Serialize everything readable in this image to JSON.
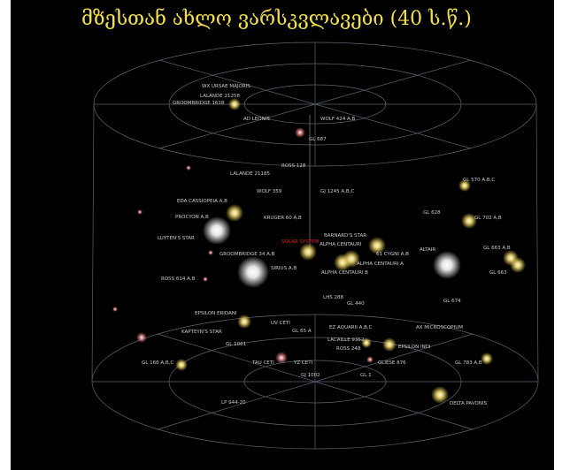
{
  "title": "მზესთან ახლო ვარსკვლავები (40 ს.წ.)",
  "labels": [
    "WX URSAE MAJORIS",
    "LALANDE 21258",
    "GROOMBRIDGE 1618",
    "AD LEONIS",
    "WOLF 424 A,B",
    "GL 687",
    "ROSS 128",
    "LALANDE 21185",
    "WOLF 359",
    "GJ 1245 A,B,C",
    "GL 570 A,B,C",
    "EDA CASSIOPEIA A,B",
    "KRUGER 60 A,B",
    "GL 628",
    "GL 702 A,B",
    "PROCYON A,B",
    "LUYTEN'S STAR",
    "SOLAR SYSTEM",
    "BARNARD'S STAR",
    "ALPHA CENTAURI",
    "GROOMBRIDGE 34 A,B",
    "61 CYGNI A,B",
    "ALTAIR",
    "GL 663 A,B",
    "SIRIUS A,B",
    "ALPHA CENTAURI A",
    "ALPHA CENTAURI B",
    "GL 663",
    "ROSS 614 A,B",
    "LHS 288",
    "GL 440",
    "GL 674",
    "EPSILON ERIDANI",
    "UV CETI",
    "GL 65 A",
    "EZ AQUARII A,B,C",
    "AX MICROSCOPIUM",
    "KAPTEYN'S STAR",
    "LACAILLE 9352",
    "ROSS 248",
    "EPSILON INDI",
    "GL 1061",
    "GLIESE 876",
    "GL 783 A,B",
    "GL 166 A,B,C",
    "TAU CETI",
    "YZ CETI",
    "GJ 1002",
    "GL 1",
    "LP 944-20",
    "DELTA PAVONIS"
  ]
}
